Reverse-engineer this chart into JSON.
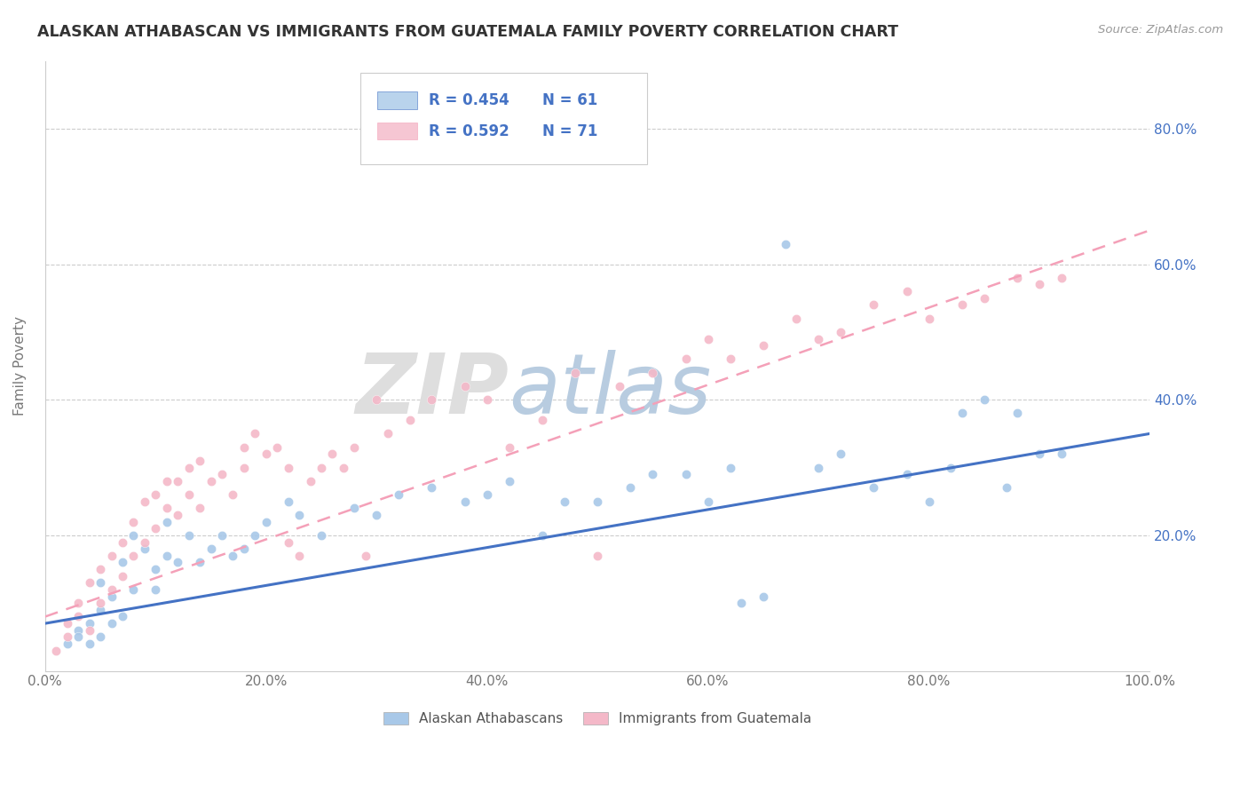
{
  "title": "ALASKAN ATHABASCAN VS IMMIGRANTS FROM GUATEMALA FAMILY POVERTY CORRELATION CHART",
  "source": "Source: ZipAtlas.com",
  "ylabel": "Family Poverty",
  "xlabel": "",
  "xlim": [
    0,
    1.0
  ],
  "ylim": [
    0,
    0.9
  ],
  "xtick_labels": [
    "0.0%",
    "20.0%",
    "40.0%",
    "60.0%",
    "80.0%",
    "100.0%"
  ],
  "ytick_vals": [
    0.2,
    0.4,
    0.6,
    0.8
  ],
  "ytick_labels": [
    "20.0%",
    "40.0%",
    "60.0%",
    "80.0%"
  ],
  "legend_label1": "Alaskan Athabascans",
  "legend_label2": "Immigrants from Guatemala",
  "R1": "0.454",
  "N1": "61",
  "R2": "0.592",
  "N2": "71",
  "color_blue": "#a8c8e8",
  "color_blue_fill": "#b8d4ec",
  "color_pink": "#f4b8c8",
  "color_pink_fill": "#f4b8c8",
  "color_blue_line": "#4472c4",
  "color_pink_line": "#f4a0b8",
  "color_blue_text": "#4472c4",
  "color_axis_text": "#4472c4",
  "watermark_zip_color": "#d8d8d8",
  "watermark_atlas_color": "#b8cce4",
  "blue_points": [
    [
      0.02,
      0.04
    ],
    [
      0.03,
      0.06
    ],
    [
      0.03,
      0.05
    ],
    [
      0.04,
      0.04
    ],
    [
      0.04,
      0.07
    ],
    [
      0.05,
      0.05
    ],
    [
      0.05,
      0.09
    ],
    [
      0.05,
      0.13
    ],
    [
      0.06,
      0.11
    ],
    [
      0.06,
      0.07
    ],
    [
      0.07,
      0.16
    ],
    [
      0.07,
      0.08
    ],
    [
      0.08,
      0.12
    ],
    [
      0.08,
      0.2
    ],
    [
      0.09,
      0.18
    ],
    [
      0.1,
      0.15
    ],
    [
      0.1,
      0.12
    ],
    [
      0.11,
      0.17
    ],
    [
      0.11,
      0.22
    ],
    [
      0.12,
      0.16
    ],
    [
      0.13,
      0.2
    ],
    [
      0.14,
      0.16
    ],
    [
      0.15,
      0.18
    ],
    [
      0.16,
      0.2
    ],
    [
      0.17,
      0.17
    ],
    [
      0.18,
      0.18
    ],
    [
      0.19,
      0.2
    ],
    [
      0.2,
      0.22
    ],
    [
      0.22,
      0.25
    ],
    [
      0.23,
      0.23
    ],
    [
      0.25,
      0.2
    ],
    [
      0.28,
      0.24
    ],
    [
      0.3,
      0.23
    ],
    [
      0.32,
      0.26
    ],
    [
      0.35,
      0.27
    ],
    [
      0.38,
      0.25
    ],
    [
      0.4,
      0.26
    ],
    [
      0.42,
      0.28
    ],
    [
      0.45,
      0.2
    ],
    [
      0.47,
      0.25
    ],
    [
      0.5,
      0.25
    ],
    [
      0.53,
      0.27
    ],
    [
      0.55,
      0.29
    ],
    [
      0.58,
      0.29
    ],
    [
      0.6,
      0.25
    ],
    [
      0.62,
      0.3
    ],
    [
      0.63,
      0.1
    ],
    [
      0.65,
      0.11
    ],
    [
      0.67,
      0.63
    ],
    [
      0.7,
      0.3
    ],
    [
      0.72,
      0.32
    ],
    [
      0.75,
      0.27
    ],
    [
      0.78,
      0.29
    ],
    [
      0.8,
      0.25
    ],
    [
      0.82,
      0.3
    ],
    [
      0.83,
      0.38
    ],
    [
      0.85,
      0.4
    ],
    [
      0.87,
      0.27
    ],
    [
      0.88,
      0.38
    ],
    [
      0.9,
      0.32
    ],
    [
      0.92,
      0.32
    ]
  ],
  "pink_points": [
    [
      0.01,
      0.03
    ],
    [
      0.02,
      0.05
    ],
    [
      0.02,
      0.07
    ],
    [
      0.03,
      0.08
    ],
    [
      0.03,
      0.1
    ],
    [
      0.04,
      0.06
    ],
    [
      0.04,
      0.13
    ],
    [
      0.05,
      0.1
    ],
    [
      0.05,
      0.15
    ],
    [
      0.06,
      0.12
    ],
    [
      0.06,
      0.17
    ],
    [
      0.07,
      0.19
    ],
    [
      0.07,
      0.14
    ],
    [
      0.08,
      0.22
    ],
    [
      0.08,
      0.17
    ],
    [
      0.09,
      0.25
    ],
    [
      0.09,
      0.19
    ],
    [
      0.1,
      0.26
    ],
    [
      0.1,
      0.21
    ],
    [
      0.11,
      0.28
    ],
    [
      0.11,
      0.24
    ],
    [
      0.12,
      0.23
    ],
    [
      0.12,
      0.28
    ],
    [
      0.13,
      0.26
    ],
    [
      0.13,
      0.3
    ],
    [
      0.14,
      0.24
    ],
    [
      0.14,
      0.31
    ],
    [
      0.15,
      0.28
    ],
    [
      0.16,
      0.29
    ],
    [
      0.17,
      0.26
    ],
    [
      0.18,
      0.3
    ],
    [
      0.18,
      0.33
    ],
    [
      0.19,
      0.35
    ],
    [
      0.2,
      0.32
    ],
    [
      0.21,
      0.33
    ],
    [
      0.22,
      0.3
    ],
    [
      0.22,
      0.19
    ],
    [
      0.23,
      0.17
    ],
    [
      0.24,
      0.28
    ],
    [
      0.25,
      0.3
    ],
    [
      0.26,
      0.32
    ],
    [
      0.27,
      0.3
    ],
    [
      0.28,
      0.33
    ],
    [
      0.29,
      0.17
    ],
    [
      0.3,
      0.4
    ],
    [
      0.31,
      0.35
    ],
    [
      0.33,
      0.37
    ],
    [
      0.35,
      0.4
    ],
    [
      0.38,
      0.42
    ],
    [
      0.4,
      0.4
    ],
    [
      0.42,
      0.33
    ],
    [
      0.45,
      0.37
    ],
    [
      0.48,
      0.44
    ],
    [
      0.5,
      0.17
    ],
    [
      0.52,
      0.42
    ],
    [
      0.55,
      0.44
    ],
    [
      0.58,
      0.46
    ],
    [
      0.6,
      0.49
    ],
    [
      0.62,
      0.46
    ],
    [
      0.65,
      0.48
    ],
    [
      0.68,
      0.52
    ],
    [
      0.7,
      0.49
    ],
    [
      0.72,
      0.5
    ],
    [
      0.75,
      0.54
    ],
    [
      0.78,
      0.56
    ],
    [
      0.8,
      0.52
    ],
    [
      0.83,
      0.54
    ],
    [
      0.85,
      0.55
    ],
    [
      0.88,
      0.58
    ],
    [
      0.9,
      0.57
    ],
    [
      0.92,
      0.58
    ]
  ],
  "blue_reg": [
    0.0,
    0.07,
    1.0,
    0.35
  ],
  "pink_reg": [
    0.0,
    0.08,
    1.0,
    0.65
  ]
}
